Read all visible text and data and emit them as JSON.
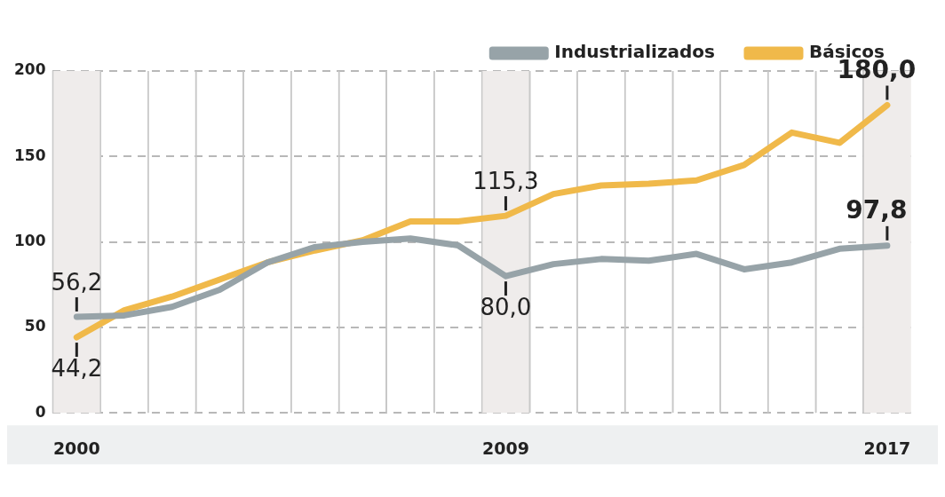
{
  "chart_data": {
    "type": "line",
    "x": [
      2000,
      2001,
      2002,
      2003,
      2004,
      2005,
      2006,
      2007,
      2008,
      2009,
      2010,
      2011,
      2012,
      2013,
      2014,
      2015,
      2016,
      2017
    ],
    "series": [
      {
        "name": "Industrializados",
        "color": "#97a3a8",
        "values": [
          56.2,
          57,
          62,
          72,
          88,
          97,
          100,
          102,
          98,
          80,
          87,
          90,
          89,
          93,
          84,
          88,
          96,
          97.8
        ],
        "value_labels": [
          "56,2",
          null,
          null,
          null,
          null,
          null,
          null,
          null,
          null,
          "80,0",
          null,
          null,
          null,
          null,
          null,
          null,
          null,
          "97,8"
        ]
      },
      {
        "name": "Básicos",
        "color": "#f0b94a",
        "values": [
          44.2,
          60,
          68,
          78,
          88,
          95,
          101,
          112,
          112,
          115.3,
          128,
          133,
          134,
          136,
          145,
          164,
          158,
          180
        ],
        "value_labels": [
          "44,2",
          null,
          null,
          null,
          null,
          null,
          null,
          null,
          null,
          "115,3",
          null,
          null,
          null,
          null,
          null,
          null,
          null,
          "180,0"
        ]
      }
    ],
    "xlim": [
      1999.5,
      2017.5
    ],
    "xticks": [
      {
        "value": 1999.5,
        "label": null
      },
      {
        "value": 2000,
        "label": "2000"
      },
      {
        "value": 2000.5,
        "label": null
      },
      {
        "value": 2001.5,
        "label": null
      },
      {
        "value": 2002.5,
        "label": null
      },
      {
        "value": 2003.5,
        "label": null
      },
      {
        "value": 2004.5,
        "label": null
      },
      {
        "value": 2005.5,
        "label": null
      },
      {
        "value": 2006.5,
        "label": null
      },
      {
        "value": 2007.5,
        "label": null
      },
      {
        "value": 2008.5,
        "label": null
      },
      {
        "value": 2009,
        "label": "2009"
      },
      {
        "value": 2009.5,
        "label": null
      },
      {
        "value": 2010.5,
        "label": null
      },
      {
        "value": 2011.5,
        "label": null
      },
      {
        "value": 2012.5,
        "label": null
      },
      {
        "value": 2013.5,
        "label": null
      },
      {
        "value": 2014.5,
        "label": null
      },
      {
        "value": 2015.5,
        "label": null
      },
      {
        "value": 2016.5,
        "label": null
      },
      {
        "value": 2017,
        "label": "2017"
      }
    ],
    "ylim": [
      0,
      200
    ],
    "yticks": [
      0,
      50,
      100,
      150,
      200
    ],
    "bands": [
      {
        "axis": "x",
        "from": 1999.5,
        "to": 2000.5,
        "color": "#efeceb"
      },
      {
        "axis": "x",
        "from": 2008.5,
        "to": 2009.5,
        "color": "#efeceb"
      },
      {
        "axis": "x",
        "from": 2016.5,
        "to": 2017.5,
        "color": "#efeceb"
      }
    ],
    "grid": true,
    "legend": "top right",
    "marker": "none",
    "line_style": "solid"
  }
}
